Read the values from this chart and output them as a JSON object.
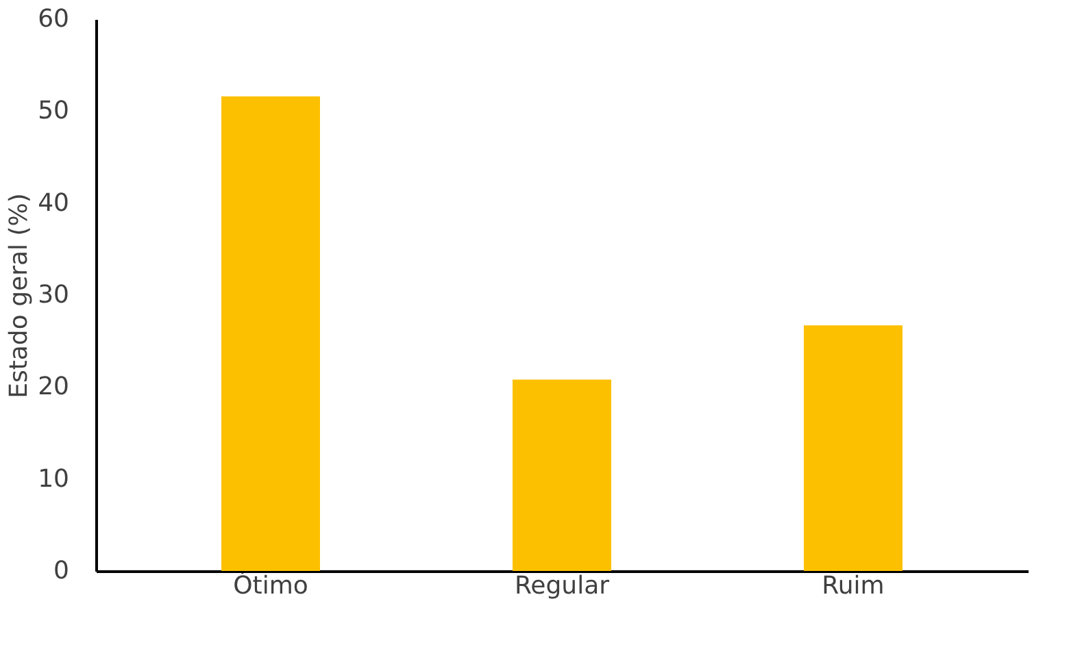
{
  "chart_data": {
    "type": "bar",
    "ylabel": "Estado geral (%)",
    "categories": [
      "Ótimo",
      "Regular",
      "Ruim"
    ],
    "values": [
      51.6,
      20.8,
      26.7
    ],
    "color": "#fdc000",
    "ylim": [
      0,
      60
    ],
    "yticks": [
      0,
      10,
      20,
      30,
      40,
      50,
      60
    ],
    "grid": false
  }
}
